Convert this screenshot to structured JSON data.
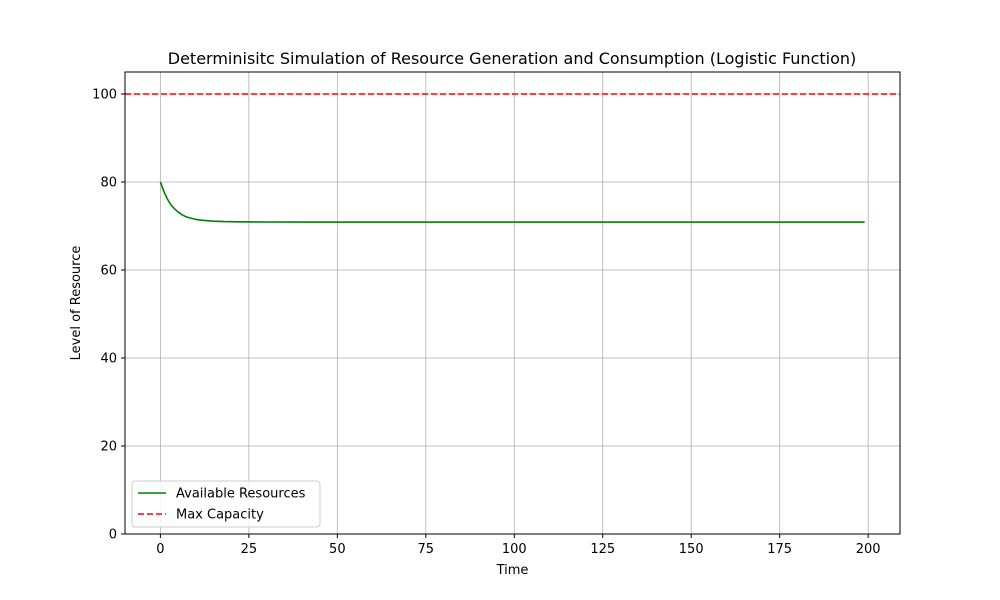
{
  "chart_data": {
    "type": "line",
    "title": "Determinisitc Simulation of Resource Generation and Consumption (Logistic Function)",
    "xlabel": "Time",
    "ylabel": "Level of Resource",
    "xlim": [
      -10,
      209
    ],
    "ylim": [
      0,
      105
    ],
    "xticks": [
      0,
      25,
      50,
      75,
      100,
      125,
      150,
      175,
      200
    ],
    "yticks": [
      0,
      20,
      40,
      60,
      80,
      100
    ],
    "grid": true,
    "legend_position": "lower-left",
    "series": [
      {
        "name": "Available Resources",
        "color": "#008000",
        "style": "solid",
        "x": [
          0,
          1,
          2,
          3,
          4,
          5,
          6,
          7,
          8,
          10,
          12,
          15,
          18,
          22,
          26,
          30,
          40,
          60,
          100,
          150,
          199
        ],
        "y": [
          80,
          77.8,
          76.1,
          74.8,
          73.9,
          73.2,
          72.6,
          72.2,
          71.9,
          71.5,
          71.3,
          71.1,
          71.0,
          70.95,
          70.92,
          70.91,
          70.9,
          70.9,
          70.9,
          70.9,
          70.9
        ]
      },
      {
        "name": "Max Capacity",
        "color": "#ff0000",
        "style": "dashed",
        "constant_y": 100
      }
    ]
  }
}
